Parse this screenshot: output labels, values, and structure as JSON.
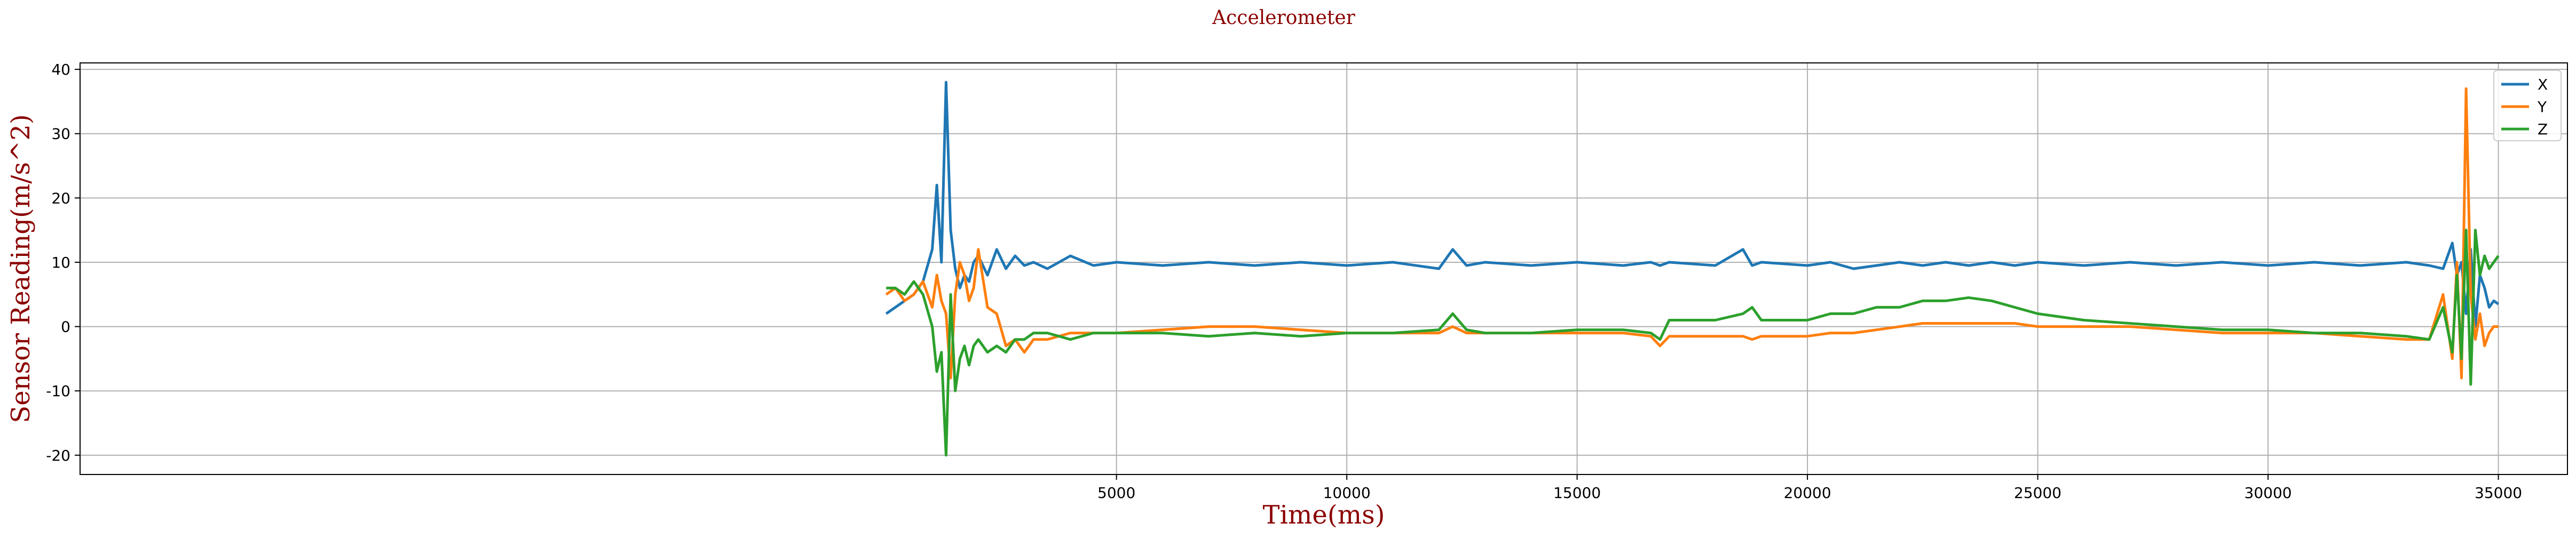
{
  "chart_data": {
    "type": "line",
    "title": "Accelerometer",
    "xlabel": "Time(ms)",
    "ylabel": "Sensor Reading(m/s^2)",
    "xlim": [
      -17500,
      36500
    ],
    "ylim": [
      -23,
      41
    ],
    "xticks": [
      5000,
      10000,
      15000,
      20000,
      25000,
      30000,
      35000
    ],
    "yticks": [
      -20,
      -10,
      0,
      10,
      20,
      30,
      40
    ],
    "grid": true,
    "legend": "top-right",
    "colors": {
      "X": "#1f77b4",
      "Y": "#ff7f0e",
      "Z": "#2ca02c"
    },
    "x": [
      0,
      200,
      400,
      600,
      800,
      1000,
      1100,
      1200,
      1300,
      1400,
      1500,
      1600,
      1700,
      1800,
      1900,
      2000,
      2200,
      2400,
      2600,
      2800,
      3000,
      3200,
      3500,
      4000,
      4500,
      5000,
      6000,
      7000,
      8000,
      9000,
      10000,
      11000,
      12000,
      12300,
      12600,
      13000,
      14000,
      15000,
      16000,
      16600,
      16800,
      17000,
      18000,
      18600,
      18800,
      19000,
      20000,
      20500,
      21000,
      21500,
      22000,
      22500,
      23000,
      23500,
      24000,
      24500,
      25000,
      26000,
      27000,
      28000,
      29000,
      30000,
      31000,
      32000,
      33000,
      33500,
      33800,
      34000,
      34100,
      34200,
      34300,
      34400,
      34500,
      34600,
      34700,
      34800,
      34900,
      35000
    ],
    "series": [
      {
        "name": "X",
        "values": [
          2,
          3,
          4,
          5,
          7,
          12,
          22,
          10,
          38,
          15,
          9,
          6,
          8,
          7,
          10,
          11,
          8,
          12,
          9,
          11,
          9.5,
          10,
          9,
          11,
          9.5,
          10,
          9.5,
          10,
          9.5,
          10,
          9.5,
          10,
          9,
          12,
          9.5,
          10,
          9.5,
          10,
          9.5,
          10,
          9.5,
          10,
          9.5,
          12,
          9.5,
          10,
          9.5,
          10,
          9,
          9.5,
          10,
          9.5,
          10,
          9.5,
          10,
          9.5,
          10,
          9.5,
          10,
          9.5,
          10,
          9.5,
          10,
          9.5,
          10,
          9.5,
          9,
          13,
          8,
          10,
          2,
          12,
          0,
          8,
          6,
          3,
          4,
          3.5
        ]
      },
      {
        "name": "Y",
        "values": [
          5,
          6,
          4,
          5,
          7,
          3,
          8,
          4,
          2,
          -8,
          5,
          10,
          8,
          4,
          6,
          12,
          3,
          2,
          -3,
          -2,
          -4,
          -2,
          -2,
          -1,
          -1,
          -1,
          -0.5,
          0,
          0,
          -0.5,
          -1,
          -1,
          -1,
          0,
          -1,
          -1,
          -1,
          -1,
          -1,
          -1.5,
          -3,
          -1.5,
          -1.5,
          -1.5,
          -2,
          -1.5,
          -1.5,
          -1,
          -1,
          -0.5,
          0,
          0.5,
          0.5,
          0.5,
          0.5,
          0.5,
          0,
          0,
          0,
          -0.5,
          -1,
          -1,
          -1,
          -1.5,
          -2,
          -2,
          5,
          -5,
          10,
          -8,
          37,
          5,
          -2,
          2,
          -3,
          -1,
          0,
          0
        ]
      },
      {
        "name": "Z",
        "values": [
          6,
          6,
          5,
          7,
          5,
          0,
          -7,
          -4,
          -20,
          5,
          -10,
          -5,
          -3,
          -6,
          -3,
          -2,
          -4,
          -3,
          -4,
          -2,
          -2,
          -1,
          -1,
          -2,
          -1,
          -1,
          -1,
          -1.5,
          -1,
          -1.5,
          -1,
          -1,
          -0.5,
          2,
          -0.5,
          -1,
          -1,
          -0.5,
          -0.5,
          -1,
          -2,
          1,
          1,
          2,
          3,
          1,
          1,
          2,
          2,
          3,
          3,
          4,
          4,
          4.5,
          4,
          3,
          2,
          1,
          0.5,
          0,
          -0.5,
          -0.5,
          -1,
          -1,
          -1.5,
          -2,
          3,
          -4,
          8,
          -5,
          15,
          -9,
          15,
          8,
          11,
          9,
          10,
          11
        ]
      }
    ]
  }
}
